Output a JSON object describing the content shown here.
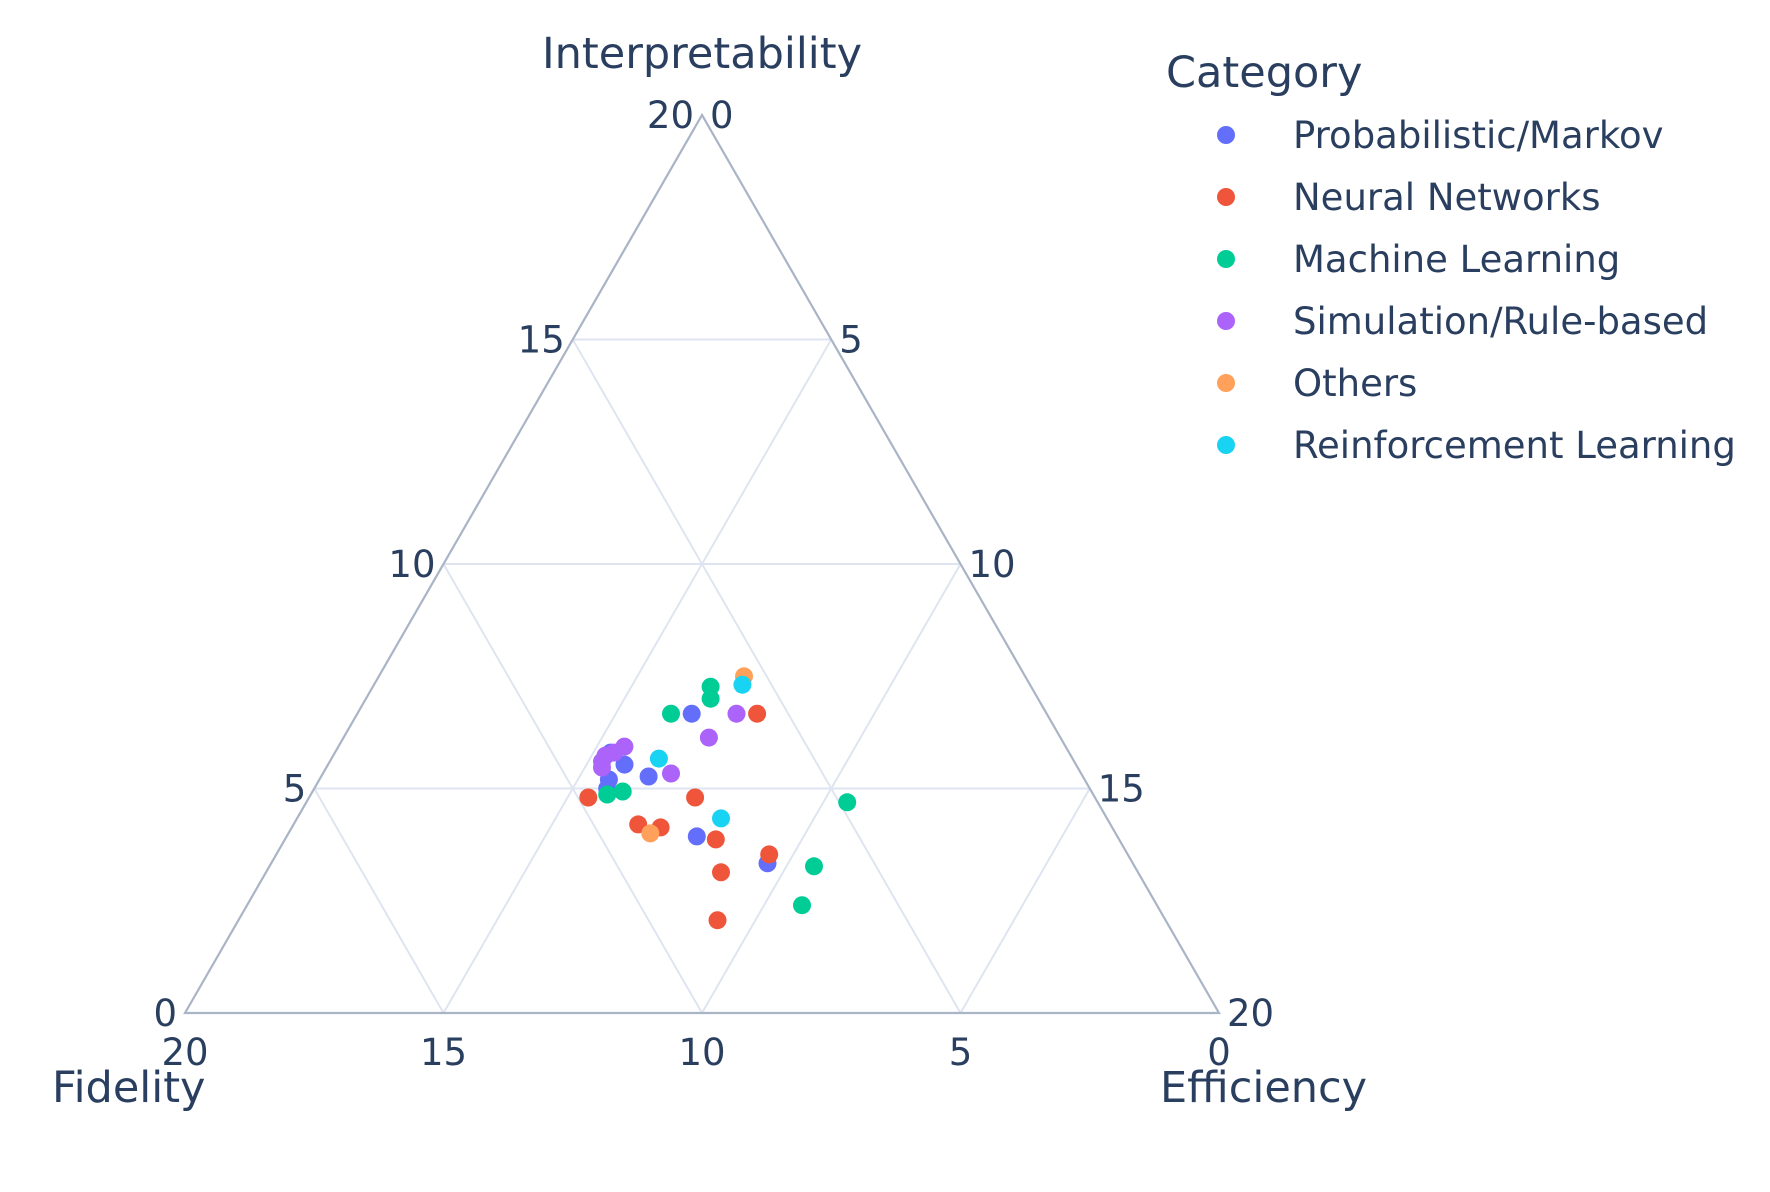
{
  "chart_data": {
    "type": "scatter",
    "subtype": "ternary",
    "sum": 20,
    "axes": {
      "a": {
        "title": "Interpretability",
        "range": [
          0,
          20
        ],
        "ticks": [
          0,
          5,
          10,
          15,
          20
        ]
      },
      "b": {
        "title": "Fidelity",
        "range": [
          0,
          20
        ],
        "ticks": [
          0,
          5,
          10,
          15,
          20
        ]
      },
      "c": {
        "title": "Efficiency",
        "range": [
          0,
          20
        ],
        "ticks": [
          0,
          5,
          10,
          15,
          20
        ]
      }
    },
    "grid": true,
    "legend": {
      "title": "Category",
      "placement": "top-right"
    },
    "series": [
      {
        "name": "Probabilistic/Markov",
        "color": "#636efa",
        "points": [
          {
            "a": 10,
            "b": 10.3,
            "c": 9.7
          },
          {
            "a": 8.7,
            "b": 13.3,
            "c": 8.0
          },
          {
            "a": 8.3,
            "b": 13.1,
            "c": 8.6
          },
          {
            "a": 7.9,
            "b": 12.6,
            "c": 9.5
          },
          {
            "a": 7.8,
            "b": 13.8,
            "c": 8.4
          },
          {
            "a": 7.5,
            "b": 14.0,
            "c": 8.5
          },
          {
            "a": 5.9,
            "b": 12.2,
            "c": 11.9
          },
          {
            "a": 5.0,
            "b": 10.6,
            "c": 14.4
          }
        ]
      },
      {
        "name": "Neural Networks",
        "color": "#ef553b",
        "points": [
          {
            "a": 10,
            "b": 8.4,
            "c": 11.6
          },
          {
            "a": 7.2,
            "b": 14.7,
            "c": 8.1
          },
          {
            "a": 7.2,
            "b": 11.6,
            "c": 11.2
          },
          {
            "a": 6.3,
            "b": 13.7,
            "c": 10.0
          },
          {
            "a": 6.2,
            "b": 13.1,
            "c": 10.7
          },
          {
            "a": 5.8,
            "b": 11.7,
            "c": 12.5
          },
          {
            "a": 5.3,
            "b": 10.4,
            "c": 14.3
          },
          {
            "a": 4.7,
            "b": 12.1,
            "c": 13.2
          },
          {
            "a": 3.1,
            "b": 13.0,
            "c": 13.9
          }
        ]
      },
      {
        "name": "Machine Learning",
        "color": "#00cc96",
        "points": [
          {
            "a": 10.9,
            "b": 9.3,
            "c": 9.8
          },
          {
            "a": 10.5,
            "b": 9.5,
            "c": 10.0
          },
          {
            "a": 10,
            "b": 10.9,
            "c": 9.1
          },
          {
            "a": 7.4,
            "b": 13.6,
            "c": 9.0
          },
          {
            "a": 7.3,
            "b": 14.1,
            "c": 8.6
          },
          {
            "a": 6.1,
            "b": 6.3,
            "c": 13.6
          },
          {
            "a": 4.9,
            "b": 9.3,
            "c": 15.8
          },
          {
            "a": 3.6,
            "b": 10.3,
            "c": 16.1
          }
        ]
      },
      {
        "name": "Simulation/Rule-based",
        "color": "#ab63fa",
        "points": [
          {
            "a": 10,
            "b": 9.0,
            "c": 11.0
          },
          {
            "a": 9.2,
            "b": 10.2,
            "c": 10.6
          },
          {
            "a": 8.9,
            "b": 12.8,
            "c": 8.3
          },
          {
            "a": 8.7,
            "b": 13.2,
            "c": 8.1
          },
          {
            "a": 8.6,
            "b": 13.5,
            "c": 7.9
          },
          {
            "a": 8.4,
            "b": 13.7,
            "c": 7.9
          },
          {
            "a": 8.2,
            "b": 13.8,
            "c": 8.0
          },
          {
            "a": 8.0,
            "b": 11.9,
            "c": 10.1
          }
        ]
      },
      {
        "name": "Others",
        "color": "#ffa15a",
        "points": [
          {
            "a": 12.0,
            "b": 8.7,
            "c": 11.3
          },
          {
            "a": 6.0,
            "b": 13.5,
            "c": 10.5
          }
        ]
      },
      {
        "name": "Reinforcement Learning",
        "color": "#19d3f3",
        "points": [
          {
            "a": 11.7,
            "b": 8.9,
            "c": 11.4
          },
          {
            "a": 8.5,
            "b": 12.0,
            "c": 9.5
          },
          {
            "a": 6.5,
            "b": 11.2,
            "c": 12.3
          }
        ]
      }
    ]
  }
}
